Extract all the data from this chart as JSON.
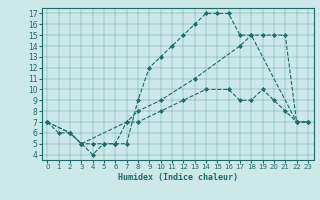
{
  "xlabel": "Humidex (Indice chaleur)",
  "bg_color": "#cce8e8",
  "line_color": "#1a6b6b",
  "xlim": [
    -0.5,
    23.5
  ],
  "ylim": [
    3.5,
    17.5
  ],
  "xticks": [
    0,
    1,
    2,
    3,
    4,
    5,
    6,
    7,
    8,
    9,
    10,
    11,
    12,
    13,
    14,
    15,
    16,
    17,
    18,
    19,
    20,
    21,
    22,
    23
  ],
  "yticks": [
    4,
    5,
    6,
    7,
    8,
    9,
    10,
    11,
    12,
    13,
    14,
    15,
    16,
    17
  ],
  "lines": [
    {
      "x": [
        0,
        1,
        2,
        3,
        4,
        5,
        6,
        7,
        8,
        9,
        10,
        11,
        12,
        13,
        14,
        15,
        16,
        17,
        18,
        22,
        23
      ],
      "y": [
        7,
        6,
        6,
        5,
        5,
        5,
        5,
        5,
        9,
        12,
        13,
        14,
        15,
        16,
        17,
        17,
        17,
        15,
        15,
        7,
        7
      ]
    },
    {
      "x": [
        0,
        2,
        3,
        7,
        8,
        10,
        13,
        17,
        18,
        19,
        20,
        21,
        22,
        23
      ],
      "y": [
        7,
        6,
        5,
        7,
        8,
        9,
        11,
        14,
        15,
        15,
        15,
        15,
        7,
        7
      ]
    },
    {
      "x": [
        0,
        2,
        3,
        4,
        5,
        6,
        7,
        8,
        10,
        12,
        14,
        16,
        17,
        18,
        19,
        20,
        21,
        22,
        23
      ],
      "y": [
        7,
        6,
        5,
        4,
        5,
        5,
        7,
        7,
        8,
        9,
        10,
        10,
        9,
        9,
        10,
        9,
        8,
        7,
        7
      ]
    }
  ]
}
